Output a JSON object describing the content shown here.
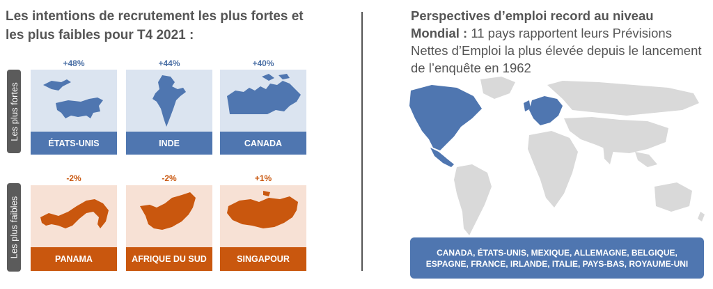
{
  "left": {
    "title": "Les intentions de recrutement les plus fortes et les plus faibles pour T4 2021 :",
    "label_strong": "Les plus fortes",
    "label_weak": "Les plus faibles",
    "strong": [
      {
        "country": "ÉTATS-UNIS",
        "value": "+48%"
      },
      {
        "country": "INDE",
        "value": "+44%"
      },
      {
        "country": "CANADA",
        "value": "+40%"
      }
    ],
    "weak": [
      {
        "country": "PANAMA",
        "value": "-2%"
      },
      {
        "country": "AFRIQUE DU SUD",
        "value": "-2%"
      },
      {
        "country": "SINGAPOUR",
        "value": "+1%"
      }
    ]
  },
  "right": {
    "title_bold": "Perspectives d’emploi record au niveau Mondial :",
    "title_rest": " 11 pays rapportent leurs Prévisions Nettes d’Emploi la plus élevée depuis le lancement de l’enquête en 1962",
    "countries": "CANADA, ÉTATS-UNIS, MEXIQUE, ALLEMAGNE, BELGIQUE, ESPAGNE, FRANCE, IRLANDE, ITALIE, PAYS-BAS, ROYAUME-UNI"
  },
  "colors": {
    "blue": "#4f76b0",
    "orange": "#c9570e",
    "light_blue": "#dbe4f0",
    "light_orange": "#f7e1d5",
    "map_gray": "#d9d9d9"
  }
}
